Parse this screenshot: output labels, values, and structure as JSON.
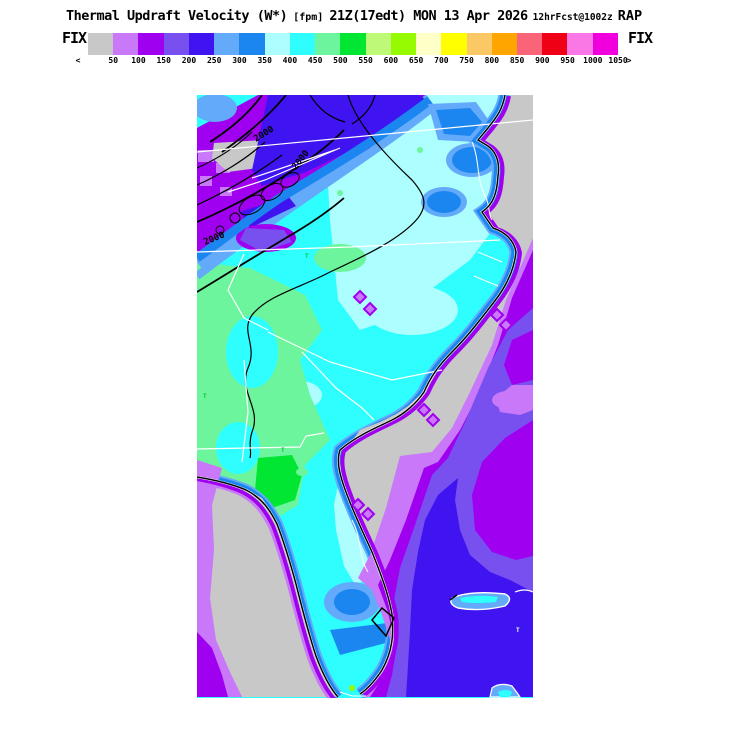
{
  "title": {
    "main": "Thermal Updraft Velocity (W*)",
    "units": "[fpm]",
    "valid": "21Z(17edt) MON 13 Apr 2026",
    "forecast": "12hrFcst@1002z",
    "model": "RAP"
  },
  "fix_left": "FIX",
  "fix_right": "FIX",
  "colorbar": {
    "colors": [
      "#c8c8c8",
      "#c878f8",
      "#a000f0",
      "#7850f0",
      "#4014f0",
      "#64aafa",
      "#1c86f0",
      "#adffff",
      "#2efefe",
      "#6cf59c",
      "#00e632",
      "#befa78",
      "#96fa00",
      "#ffffc8",
      "#ffff00",
      "#fac864",
      "#ffa500",
      "#fa6478",
      "#f00014",
      "#fa78e6",
      "#f000dc"
    ],
    "tick_labels": [
      "<",
      "50",
      "100",
      "150",
      "200",
      "250",
      "300",
      "350",
      "400",
      "450",
      "500",
      "550",
      "600",
      "650",
      "700",
      "750",
      "800",
      "850",
      "900",
      "950",
      "1000",
      "1050",
      ">"
    ]
  },
  "map": {
    "contour_labels": [
      "2000",
      "2000",
      "2000"
    ],
    "marks": [
      "T",
      "T",
      "T",
      "T"
    ],
    "key_colors": {
      "land_cyan": "#2efefe",
      "land_pale_cyan": "#adffff",
      "land_green": "#6cf59c",
      "land_bright_green": "#00e632",
      "ocean_calm_gray": "#c8c8c8",
      "band_light_violet": "#c878f8",
      "band_purple": "#a000f0",
      "band_slate": "#7850f0",
      "band_blue_violet": "#4014f0",
      "coastal_blue": "#1c86f0",
      "coastal_light_blue": "#64aafa",
      "state_line": "#ffffff",
      "coastline": "#000000"
    }
  }
}
